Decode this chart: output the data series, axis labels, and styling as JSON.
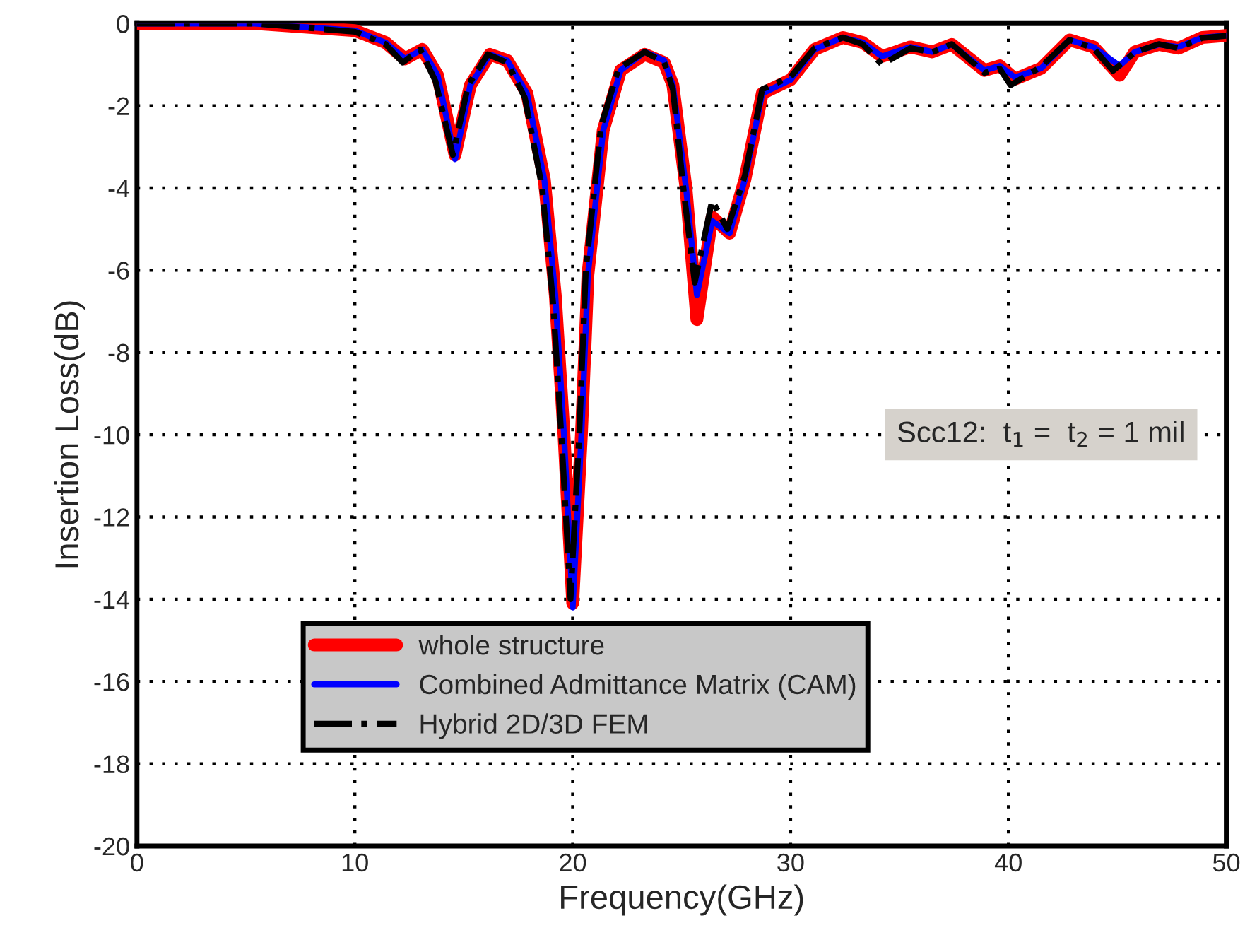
{
  "chart_data": {
    "type": "line",
    "xlabel": "Frequency(GHz)",
    "ylabel": "Insertion Loss(dB)",
    "xlim": [
      0,
      50
    ],
    "xticks": [
      0,
      10,
      20,
      30,
      40,
      50
    ],
    "ylim": [
      -20,
      0
    ],
    "yticks": [
      -20,
      -18,
      -16,
      -14,
      -12,
      -10,
      -8,
      -6,
      -4,
      -2,
      0
    ],
    "grid": true,
    "legend": "bottom left",
    "marker": "none",
    "annotations": [
      "Scc12:  t$_{1}$ =  t$_{2}$ = 1 mil"
    ],
    "series": [
      {
        "name": "whole structure",
        "color": "#ff0000",
        "line_style": "solid",
        "x": [
          0,
          5.4,
          10,
          11.4,
          12.3,
          13.1,
          13.8,
          14.6,
          15.3,
          16.2,
          17.0,
          17.9,
          18.7,
          19.2,
          19.6,
          20.0,
          20.4,
          20.7,
          21.4,
          22.2,
          23.3,
          24.2,
          24.6,
          25.2,
          25.7,
          26.4,
          27.2,
          27.9,
          28.7,
          30,
          31.1,
          32.4,
          33.3,
          34.2,
          35.5,
          36.5,
          37.4,
          38.9,
          39.6,
          40.3,
          41.5,
          42.8,
          43.9,
          45.1,
          45.8,
          46.9,
          47.8,
          48.9,
          50
        ],
        "values": [
          0,
          0,
          -0.17,
          -0.46,
          -0.86,
          -0.63,
          -1.26,
          -3.2,
          -1.5,
          -0.75,
          -0.9,
          -1.7,
          -3.8,
          -6.6,
          -10,
          -14.1,
          -10,
          -6.1,
          -2.6,
          -1.14,
          -0.75,
          -0.95,
          -1.5,
          -4,
          -7.2,
          -4.7,
          -5.1,
          -3.8,
          -1.7,
          -1.37,
          -0.63,
          -0.34,
          -0.46,
          -0.8,
          -0.57,
          -0.69,
          -0.51,
          -1.14,
          -1.03,
          -1.35,
          -1.09,
          -0.4,
          -0.57,
          -1.26,
          -0.69,
          -0.51,
          -0.6,
          -0.34,
          -0.29
        ]
      },
      {
        "name": "Combined Admittance Matrix (CAM)",
        "color": "#0000ff",
        "line_style": "solid",
        "x": [
          0,
          5.4,
          10,
          11.4,
          12.3,
          13.1,
          13.8,
          14.6,
          15.3,
          16.2,
          17.0,
          17.9,
          18.7,
          19.2,
          19.6,
          20.0,
          20.4,
          20.7,
          21.4,
          22.2,
          23.3,
          24.2,
          24.6,
          25.2,
          25.7,
          26.4,
          27.2,
          27.9,
          28.7,
          30,
          31.1,
          32.4,
          33.3,
          34.2,
          35.5,
          36.5,
          37.4,
          38.9,
          39.6,
          40.3,
          41.5,
          42.8,
          43.9,
          45.1,
          45.8,
          46.9,
          47.8,
          48.9,
          50
        ],
        "values": [
          0,
          0,
          -0.17,
          -0.46,
          -0.86,
          -0.63,
          -1.26,
          -3.3,
          -1.5,
          -0.75,
          -0.9,
          -1.7,
          -3.8,
          -6.6,
          -10,
          -14.2,
          -10,
          -6.1,
          -2.6,
          -1.14,
          -0.69,
          -0.9,
          -1.5,
          -4,
          -6.6,
          -4.8,
          -5.1,
          -3.8,
          -1.7,
          -1.37,
          -0.63,
          -0.34,
          -0.46,
          -0.8,
          -0.57,
          -0.69,
          -0.51,
          -1.14,
          -1.03,
          -1.31,
          -1.09,
          -0.4,
          -0.57,
          -1.03,
          -0.69,
          -0.51,
          -0.57,
          -0.34,
          -0.29
        ]
      },
      {
        "name": "Hybrid 2D/3D FEM",
        "color": "#000000",
        "line_style": "dashdot",
        "x": [
          0,
          5.4,
          10,
          11.4,
          12.2,
          13.0,
          13.7,
          14.5,
          15.2,
          16.1,
          17.0,
          17.8,
          18.6,
          19.1,
          19.5,
          19.9,
          20.3,
          20.6,
          21.3,
          22.1,
          23.3,
          24.2,
          24.6,
          25.1,
          25.6,
          26.4,
          27.1,
          27.9,
          28.7,
          30,
          31.1,
          32.4,
          33.3,
          34.2,
          35.5,
          36.5,
          37.4,
          38.9,
          39.6,
          40.1,
          41.5,
          42.8,
          43.9,
          44.8,
          45.8,
          46.9,
          47.8,
          48.9,
          50
        ],
        "values": [
          0,
          0,
          -0.2,
          -0.5,
          -0.95,
          -0.63,
          -1.4,
          -3.2,
          -1.5,
          -0.75,
          -0.95,
          -1.8,
          -4,
          -6.8,
          -10.2,
          -14,
          -10,
          -6,
          -2.5,
          -1.1,
          -0.69,
          -0.95,
          -1.6,
          -4.1,
          -6.3,
          -4.3,
          -5.0,
          -3.7,
          -1.6,
          -1.3,
          -0.6,
          -0.34,
          -0.5,
          -1.0,
          -0.6,
          -0.7,
          -0.5,
          -1.2,
          -1.1,
          -1.5,
          -1.05,
          -0.4,
          -0.6,
          -1.15,
          -0.7,
          -0.5,
          -0.6,
          -0.35,
          -0.3
        ]
      }
    ]
  }
}
